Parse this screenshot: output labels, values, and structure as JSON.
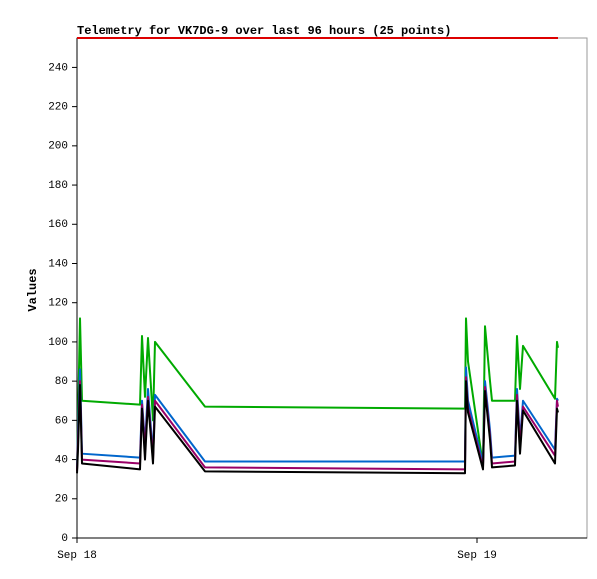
{
  "chart_data": {
    "type": "line",
    "title": "Telemetry for VK7DG-9 over last 96 hours (25 points)",
    "y_label": "Values",
    "x": [
      0,
      0.06,
      0.18,
      0.3,
      3.78,
      3.9,
      4.08,
      4.26,
      4.56,
      4.68,
      7.68,
      23.28,
      23.34,
      23.46,
      24.36,
      24.48,
      24.78,
      24.9,
      26.28,
      26.4,
      26.58,
      26.76,
      28.68,
      28.8,
      28.86
    ],
    "series": [
      {
        "color": "#00aa00",
        "values": [
          35,
          60,
          112,
          70,
          68,
          103,
          72,
          102,
          60,
          100,
          67,
          66,
          112,
          90,
          37,
          108,
          80,
          70,
          70,
          103,
          76,
          98,
          71,
          100,
          97
        ]
      },
      {
        "color": "#0066cc",
        "values": [
          35,
          55,
          86,
          43,
          41,
          70,
          48,
          76,
          42,
          73,
          39,
          39,
          87,
          70,
          38,
          80,
          55,
          41,
          42,
          76,
          50,
          70,
          45,
          71,
          70
        ]
      },
      {
        "color": "#990066",
        "values": [
          34,
          50,
          80,
          40,
          38,
          68,
          45,
          72,
          40,
          70,
          36,
          35,
          82,
          66,
          36,
          77,
          52,
          38,
          39,
          73,
          47,
          67,
          42,
          70,
          67
        ]
      },
      {
        "color": "#000000",
        "values": [
          33,
          45,
          78,
          38,
          35,
          66,
          40,
          70,
          38,
          67,
          34,
          33,
          80,
          64,
          35,
          75,
          50,
          36,
          37,
          70,
          43,
          65,
          38,
          66,
          64
        ]
      },
      {
        "color": "#dd0000",
        "values": [
          255,
          255,
          255,
          255,
          255,
          255,
          255,
          255,
          255,
          255,
          255,
          255,
          255,
          255,
          255,
          255,
          255,
          255,
          255,
          255,
          255,
          255,
          255,
          255,
          255
        ]
      }
    ],
    "xlim": [
      0,
      30.6
    ],
    "xticks": [
      {
        "value": 0,
        "label": "Sep 18"
      },
      {
        "value": 24,
        "label": "Sep 19"
      }
    ],
    "ylim": [
      0,
      255
    ],
    "yticks": [
      0,
      20,
      40,
      60,
      80,
      100,
      120,
      140,
      160,
      180,
      200,
      220,
      240
    ]
  }
}
